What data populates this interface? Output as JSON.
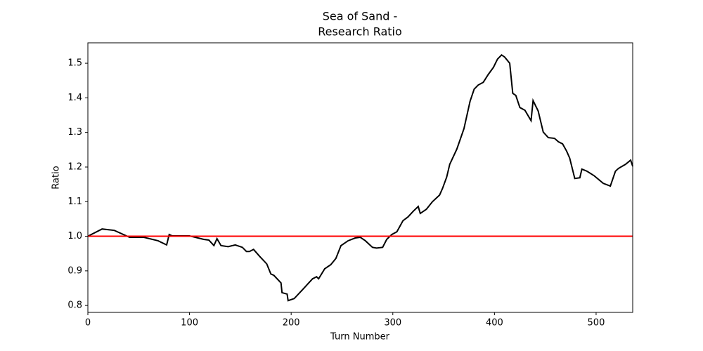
{
  "chart_data": {
    "type": "line",
    "title": [
      "Sea of Sand -",
      "Research Ratio"
    ],
    "x_label": "Turn Number",
    "y_label": "Ratio",
    "x": [
      0,
      14,
      26,
      41,
      55,
      69,
      76,
      77.5,
      80,
      83,
      100,
      114,
      119,
      124,
      127,
      131,
      138,
      145,
      152,
      156,
      159,
      163,
      169,
      176,
      180,
      183,
      190,
      191,
      196,
      197,
      203,
      211,
      216,
      221,
      225,
      227,
      233,
      239,
      244,
      249,
      256,
      263,
      268,
      273,
      280,
      284,
      290,
      294,
      299,
      304,
      310,
      315,
      320,
      325,
      327,
      333,
      339,
      346,
      349,
      353,
      356,
      363,
      370,
      376,
      380,
      384,
      389,
      394,
      399,
      403,
      407,
      410,
      415,
      418,
      421,
      425,
      430,
      434,
      436,
      438,
      443,
      448,
      453,
      459,
      463,
      467,
      471,
      474,
      479,
      484,
      486,
      491,
      498,
      507,
      514,
      519,
      522,
      529,
      534,
      536
    ],
    "series": [
      {
        "name": "Research Ratio",
        "color": "#000000",
        "values": [
          1.0,
          1.021,
          1.017,
          0.997,
          0.997,
          0.987,
          0.977,
          0.975,
          1.005,
          1.001,
          1.001,
          0.991,
          0.989,
          0.973,
          0.993,
          0.973,
          0.97,
          0.975,
          0.968,
          0.956,
          0.956,
          0.962,
          0.942,
          0.92,
          0.891,
          0.887,
          0.865,
          0.837,
          0.833,
          0.814,
          0.82,
          0.845,
          0.861,
          0.877,
          0.883,
          0.877,
          0.906,
          0.918,
          0.936,
          0.973,
          0.987,
          0.995,
          0.997,
          0.987,
          0.968,
          0.966,
          0.968,
          0.991,
          1.005,
          1.013,
          1.045,
          1.056,
          1.072,
          1.086,
          1.066,
          1.078,
          1.1,
          1.119,
          1.139,
          1.171,
          1.208,
          1.252,
          1.311,
          1.39,
          1.425,
          1.437,
          1.445,
          1.468,
          1.488,
          1.512,
          1.524,
          1.518,
          1.5,
          1.413,
          1.407,
          1.372,
          1.364,
          1.344,
          1.334,
          1.392,
          1.362,
          1.301,
          1.285,
          1.283,
          1.273,
          1.267,
          1.246,
          1.226,
          1.167,
          1.169,
          1.194,
          1.188,
          1.175,
          1.153,
          1.145,
          1.188,
          1.196,
          1.208,
          1.22,
          1.202
        ]
      }
    ],
    "hline": {
      "value": 1,
      "color": "#ff0000"
    },
    "xlim": [
      0,
      536
    ],
    "ylim": [
      0.78,
      1.559
    ],
    "xticks": [
      0,
      100,
      200,
      300,
      400,
      500
    ],
    "yticks": [
      0.8,
      0.9,
      {
        "value": 1,
        "label": "1.0"
      },
      1.1,
      1.2,
      1.3,
      1.4,
      1.5
    ]
  }
}
